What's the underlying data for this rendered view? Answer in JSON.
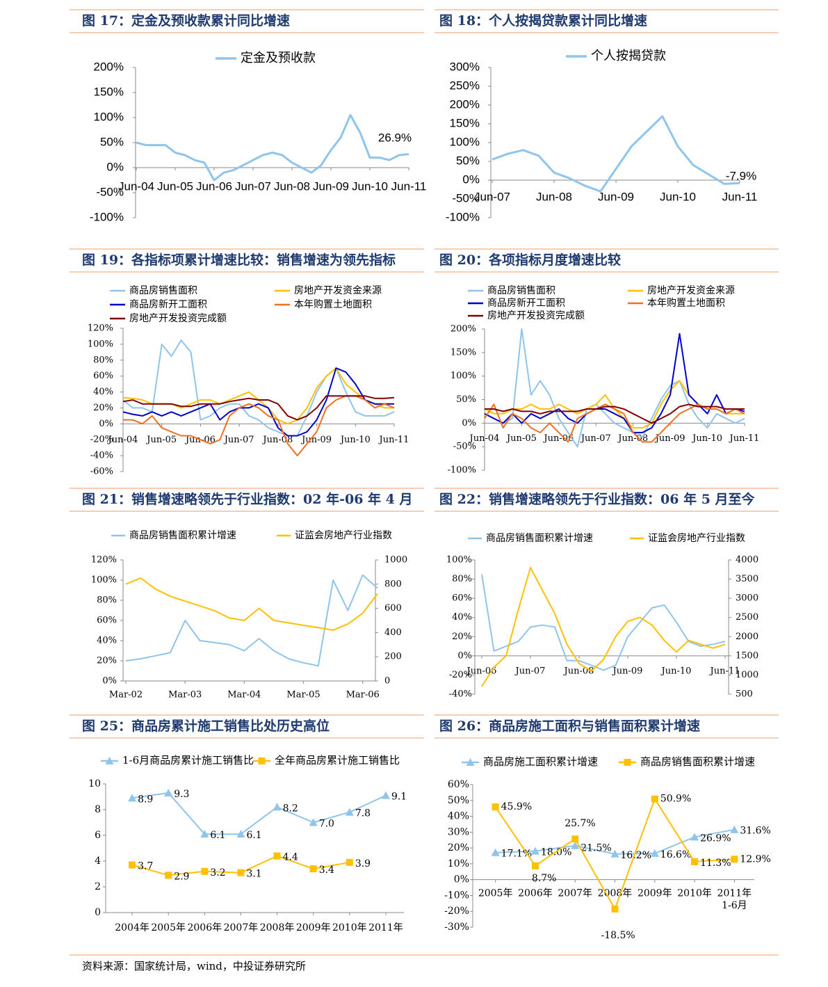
{
  "chart_data": [
    {
      "type": "line",
      "title": "图 17：定金及预收款累计同比增速",
      "categories": [
        "Jun-04",
        null,
        null,
        null,
        "Jun-05",
        null,
        null,
        null,
        "Jun-06",
        null,
        null,
        null,
        "Jun-07",
        null,
        null,
        null,
        "Jun-08",
        null,
        null,
        null,
        "Jun-09",
        null,
        null,
        null,
        "Jun-10",
        null,
        null,
        null,
        "Jun-11"
      ],
      "series": [
        {
          "name": "定金及预收款",
          "color": "#8fc4ec",
          "values": [
            50,
            45,
            45,
            45,
            30,
            25,
            15,
            10,
            -25,
            -10,
            -5,
            5,
            15,
            25,
            30,
            25,
            10,
            0,
            -10,
            5,
            35,
            60,
            105,
            70,
            20,
            20,
            15,
            25,
            26.9
          ]
        }
      ],
      "ylim": [
        -100,
        200
      ],
      "yticks": [
        {
          "value": -100,
          "label": "-100%"
        },
        {
          "value": -50,
          "label": "-50%"
        },
        {
          "value": 0,
          "label": "0%"
        },
        {
          "value": 50,
          "label": "50%"
        },
        {
          "value": 100,
          "label": "100%"
        },
        {
          "value": 150,
          "label": "150%"
        },
        {
          "value": 200,
          "label": "200%"
        }
      ],
      "annotations": [
        "26.9%"
      ]
    },
    {
      "type": "line",
      "title": "图 18：个人按揭贷款累计同比增速",
      "categories": [
        "Jun-07",
        null,
        null,
        null,
        "Jun-08",
        null,
        null,
        null,
        "Jun-09",
        null,
        null,
        null,
        "Jun-10",
        null,
        null,
        null,
        "Jun-11"
      ],
      "series": [
        {
          "name": "个人按揭贷款",
          "color": "#8fc4ec",
          "values": [
            55,
            70,
            80,
            65,
            20,
            5,
            -15,
            -30,
            30,
            90,
            130,
            170,
            90,
            40,
            15,
            -10,
            -7.9
          ]
        }
      ],
      "ylim": [
        -100,
        300
      ],
      "yticks": [
        {
          "value": -100,
          "label": "-100%"
        },
        {
          "value": -50,
          "label": "-50%"
        },
        {
          "value": 0,
          "label": "0%"
        },
        {
          "value": 50,
          "label": "50%"
        },
        {
          "value": 100,
          "label": "100%"
        },
        {
          "value": 150,
          "label": "150%"
        },
        {
          "value": 200,
          "label": "200%"
        },
        {
          "value": 250,
          "label": "250%"
        },
        {
          "value": 300,
          "label": "300%"
        }
      ],
      "annotations": [
        "-7.9%"
      ]
    },
    {
      "type": "line",
      "title": "图 19：各指标项累计增速比较：销售增速为领先指标",
      "categories": [
        "Jun-04",
        null,
        null,
        null,
        "Jun-05",
        null,
        null,
        null,
        "Jun-06",
        null,
        null,
        null,
        "Jun-07",
        null,
        null,
        null,
        "Jun-08",
        null,
        null,
        null,
        "Jun-09",
        null,
        null,
        null,
        "Jun-10",
        null,
        null,
        null,
        "Jun-11"
      ],
      "series": [
        {
          "name": "商品房销售面积",
          "color": "#8fc4ec",
          "values": [
            30,
            20,
            20,
            15,
            100,
            85,
            105,
            90,
            5,
            10,
            20,
            25,
            25,
            10,
            5,
            -5,
            -10,
            -15,
            -15,
            10,
            40,
            60,
            70,
            40,
            15,
            10,
            10,
            10,
            15
          ]
        },
        {
          "name": "房地产开发资金来源",
          "color": "#ffc000",
          "values": [
            33,
            32,
            30,
            25,
            25,
            25,
            20,
            25,
            30,
            30,
            25,
            30,
            35,
            40,
            30,
            20,
            5,
            0,
            5,
            20,
            45,
            60,
            70,
            50,
            40,
            30,
            25,
            20,
            20
          ]
        },
        {
          "name": "商品房新开工面积",
          "color": "#0000cc",
          "values": [
            15,
            12,
            10,
            15,
            10,
            15,
            10,
            15,
            20,
            25,
            5,
            15,
            20,
            20,
            25,
            20,
            -5,
            -15,
            -15,
            -10,
            5,
            30,
            70,
            65,
            50,
            30,
            25,
            25,
            25
          ]
        },
        {
          "name": "本年购置土地面积",
          "color": "#f07020",
          "values": [
            5,
            5,
            0,
            10,
            -5,
            -10,
            -15,
            -15,
            -20,
            -25,
            -20,
            10,
            20,
            25,
            20,
            10,
            5,
            -25,
            -40,
            -25,
            -10,
            20,
            30,
            35,
            35,
            30,
            20,
            25,
            20
          ]
        },
        {
          "name": "房地产开发投资完成额",
          "color": "#800000",
          "values": [
            28,
            30,
            25,
            25,
            25,
            25,
            22,
            22,
            25,
            25,
            25,
            28,
            30,
            32,
            30,
            30,
            25,
            10,
            5,
            10,
            20,
            35,
            35,
            35,
            35,
            35,
            32,
            32,
            33
          ]
        }
      ],
      "ylim": [
        -60,
        120
      ],
      "yticks": [
        {
          "value": -60,
          "label": "-60%"
        },
        {
          "value": -40,
          "label": "-40%"
        },
        {
          "value": -20,
          "label": "-20%"
        },
        {
          "value": 0,
          "label": "0%"
        },
        {
          "value": 20,
          "label": "20%"
        },
        {
          "value": 40,
          "label": "40%"
        },
        {
          "value": 60,
          "label": "60%"
        },
        {
          "value": 80,
          "label": "80%"
        },
        {
          "value": 100,
          "label": "100%"
        },
        {
          "value": 120,
          "label": "120%"
        }
      ]
    },
    {
      "type": "line",
      "title": "图 20：各项指标月度增速比较",
      "categories": [
        "Jun-04",
        null,
        null,
        null,
        "Jun-05",
        null,
        null,
        null,
        "Jun-06",
        null,
        null,
        null,
        "Jun-07",
        null,
        null,
        null,
        "Jun-08",
        null,
        null,
        null,
        "Jun-09",
        null,
        null,
        null,
        "Jun-10",
        null,
        null,
        null,
        "Jun-11"
      ],
      "series": [
        {
          "name": "商品房销售面积",
          "color": "#8fc4ec",
          "values": [
            20,
            10,
            0,
            10,
            200,
            60,
            90,
            60,
            10,
            -20,
            -50,
            30,
            40,
            20,
            0,
            -10,
            -20,
            -30,
            10,
            50,
            80,
            90,
            40,
            10,
            -10,
            20,
            10,
            0,
            10
          ]
        },
        {
          "name": "房地产开发资金来源",
          "color": "#ffc000",
          "values": [
            30,
            20,
            20,
            30,
            30,
            40,
            30,
            30,
            40,
            30,
            20,
            30,
            40,
            60,
            30,
            10,
            -10,
            -10,
            0,
            40,
            70,
            90,
            60,
            40,
            30,
            30,
            20,
            20,
            20
          ]
        },
        {
          "name": "商品房新开工面积",
          "color": "#0000cc",
          "values": [
            20,
            10,
            0,
            20,
            0,
            20,
            10,
            20,
            30,
            10,
            0,
            20,
            30,
            30,
            20,
            10,
            -20,
            -20,
            -10,
            20,
            60,
            190,
            60,
            40,
            20,
            60,
            20,
            30,
            25
          ]
        },
        {
          "name": "本年购置土地面积",
          "color": "#f07020",
          "values": [
            10,
            40,
            -10,
            20,
            10,
            -10,
            -20,
            0,
            -20,
            -40,
            10,
            20,
            30,
            40,
            30,
            20,
            -20,
            -40,
            -40,
            -20,
            0,
            20,
            30,
            40,
            30,
            30,
            20,
            30,
            20
          ]
        },
        {
          "name": "房地产开发投资完成额",
          "color": "#800000",
          "values": [
            30,
            30,
            25,
            30,
            25,
            25,
            20,
            25,
            25,
            25,
            25,
            30,
            30,
            35,
            35,
            30,
            20,
            10,
            0,
            10,
            20,
            35,
            40,
            35,
            35,
            35,
            30,
            30,
            30
          ]
        }
      ],
      "ylim": [
        -100,
        200
      ],
      "yticks": [
        {
          "value": -100,
          "label": "-100%"
        },
        {
          "value": -50,
          "label": "-50%"
        },
        {
          "value": 0,
          "label": "0%"
        },
        {
          "value": 50,
          "label": "50%"
        },
        {
          "value": 100,
          "label": "100%"
        },
        {
          "value": 150,
          "label": "150%"
        },
        {
          "value": 200,
          "label": "200%"
        }
      ]
    },
    {
      "type": "line",
      "title": "图 21：销售增速略领先于行业指数：02 年-06 年 4 月",
      "categories": [
        "Mar-02",
        null,
        null,
        null,
        "Mar-03",
        null,
        null,
        null,
        "Mar-04",
        null,
        null,
        null,
        "Mar-05",
        null,
        null,
        null,
        "Mar-06",
        null
      ],
      "series": [
        {
          "name": "商品房销售面积累计增速",
          "color": "#8fc4ec",
          "values": [
            20,
            22,
            25,
            28,
            60,
            40,
            38,
            36,
            30,
            42,
            30,
            22,
            18,
            15,
            100,
            70,
            105,
            92
          ]
        },
        {
          "name": "证监会房地产行业指数",
          "color": "#ffc000",
          "axis": "y2",
          "values": [
            800,
            850,
            760,
            700,
            660,
            620,
            580,
            520,
            500,
            600,
            500,
            480,
            460,
            440,
            420,
            470,
            560,
            720
          ]
        }
      ],
      "ylim": [
        0,
        120
      ],
      "yticks": [
        {
          "value": 0,
          "label": "0%"
        },
        {
          "value": 20,
          "label": "20%"
        },
        {
          "value": 40,
          "label": "40%"
        },
        {
          "value": 60,
          "label": "60%"
        },
        {
          "value": 80,
          "label": "80%"
        },
        {
          "value": 100,
          "label": "100%"
        },
        {
          "value": 120,
          "label": "120%"
        }
      ],
      "y2lim": [
        0,
        1000
      ],
      "y2ticks": [
        0,
        200,
        400,
        600,
        800,
        1000
      ]
    },
    {
      "type": "line",
      "title": "图 22：销售增速略领先于行业指数：06 年 5 月至今",
      "categories": [
        "Jun-06",
        null,
        null,
        null,
        "Jun-07",
        null,
        null,
        null,
        "Jun-08",
        null,
        null,
        null,
        "Jun-09",
        null,
        null,
        null,
        "Jun-10",
        null,
        null,
        null,
        "Jun-11"
      ],
      "series": [
        {
          "name": "商品房销售面积累计增速",
          "color": "#8fc4ec",
          "values": [
            85,
            5,
            10,
            15,
            30,
            32,
            30,
            -5,
            -5,
            -10,
            -15,
            -10,
            20,
            35,
            50,
            53,
            35,
            15,
            10,
            12,
            15
          ]
        },
        {
          "name": "证监会房地产行业指数",
          "color": "#ffc000",
          "axis": "y2",
          "values": [
            700,
            1200,
            1500,
            2700,
            3800,
            3200,
            2600,
            1800,
            1300,
            1100,
            1400,
            2000,
            2400,
            2500,
            2300,
            1900,
            1600,
            1900,
            1800,
            1700,
            1800
          ]
        }
      ],
      "ylim": [
        -40,
        100
      ],
      "yticks": [
        {
          "value": -40,
          "label": "-40%"
        },
        {
          "value": -20,
          "label": "-20%"
        },
        {
          "value": 0,
          "label": "0%"
        },
        {
          "value": 20,
          "label": "20%"
        },
        {
          "value": 40,
          "label": "40%"
        },
        {
          "value": 60,
          "label": "60%"
        },
        {
          "value": 80,
          "label": "80%"
        },
        {
          "value": 100,
          "label": "100%"
        }
      ],
      "y2lim": [
        500,
        4000
      ],
      "y2ticks": [
        500,
        1000,
        1500,
        2000,
        2500,
        3000,
        3500,
        4000
      ]
    },
    {
      "type": "line",
      "title": "图 25：商品房累计施工销售比处历史高位",
      "categories": [
        "2004年",
        "2005年",
        "2006年",
        "2007年",
        "2008年",
        "2009年",
        "2010年",
        "2011年"
      ],
      "series": [
        {
          "name": "1-6月商品房累计施工销售比",
          "color": "#8fc4ec",
          "marker": "triangle",
          "values": [
            8.9,
            9.3,
            6.1,
            6.1,
            8.2,
            7.0,
            7.8,
            9.1
          ],
          "value_labels": [
            "8.9",
            "9.3",
            "6.1",
            "6.1",
            "8.2",
            "7.0",
            "7.8",
            "9.1"
          ]
        },
        {
          "name": "全年商品房累计施工销售比",
          "color": "#ffc000",
          "marker": "square",
          "values": [
            3.7,
            2.9,
            3.2,
            3.1,
            4.4,
            3.4,
            3.9,
            null
          ],
          "value_labels": [
            "3.7",
            "2.9",
            "3.2",
            "3.1",
            "4.4",
            "3.4",
            "3.9",
            null
          ]
        }
      ],
      "ylim": [
        0,
        10
      ],
      "yticks": [
        0,
        2,
        4,
        6,
        8,
        10
      ]
    },
    {
      "type": "line",
      "title": "图 26：商品房施工面积与销售面积累计增速",
      "categories": [
        "2005年",
        "2006年",
        "2007年",
        "2008年",
        "2009年",
        "2010年",
        "2011年\n1-6月"
      ],
      "series": [
        {
          "name": "商品房施工面积累计增速",
          "color": "#8fc4ec",
          "marker": "triangle",
          "values": [
            17.1,
            18.0,
            21.5,
            16.2,
            16.6,
            26.9,
            31.6
          ],
          "value_labels": [
            "17.1%",
            "18.0%",
            "21.5%",
            "16.2%",
            "16.6%",
            "26.9%",
            "31.6%"
          ]
        },
        {
          "name": "商品房销售面积累计增速",
          "color": "#ffc000",
          "marker": "square",
          "values": [
            45.9,
            8.7,
            25.7,
            -18.5,
            50.9,
            11.3,
            12.9
          ],
          "value_labels": [
            "45.9%",
            "8.7%",
            "25.7%",
            "-18.5%",
            "50.9%",
            "11.3%",
            "12.9%"
          ]
        }
      ],
      "ylim": [
        -30,
        60
      ],
      "yticks": [
        {
          "value": -30,
          "label": "-30%"
        },
        {
          "value": -20,
          "label": "-20%"
        },
        {
          "value": -10,
          "label": "-10%"
        },
        {
          "value": 0,
          "label": "0%"
        },
        {
          "value": 10,
          "label": "10%"
        },
        {
          "value": 20,
          "label": "20%"
        },
        {
          "value": 30,
          "label": "30%"
        },
        {
          "value": 40,
          "label": "40%"
        },
        {
          "value": 50,
          "label": "50%"
        },
        {
          "value": 60,
          "label": "60%"
        }
      ]
    }
  ],
  "source": "资料来源：国家统计局，wind，中投证券研究所"
}
